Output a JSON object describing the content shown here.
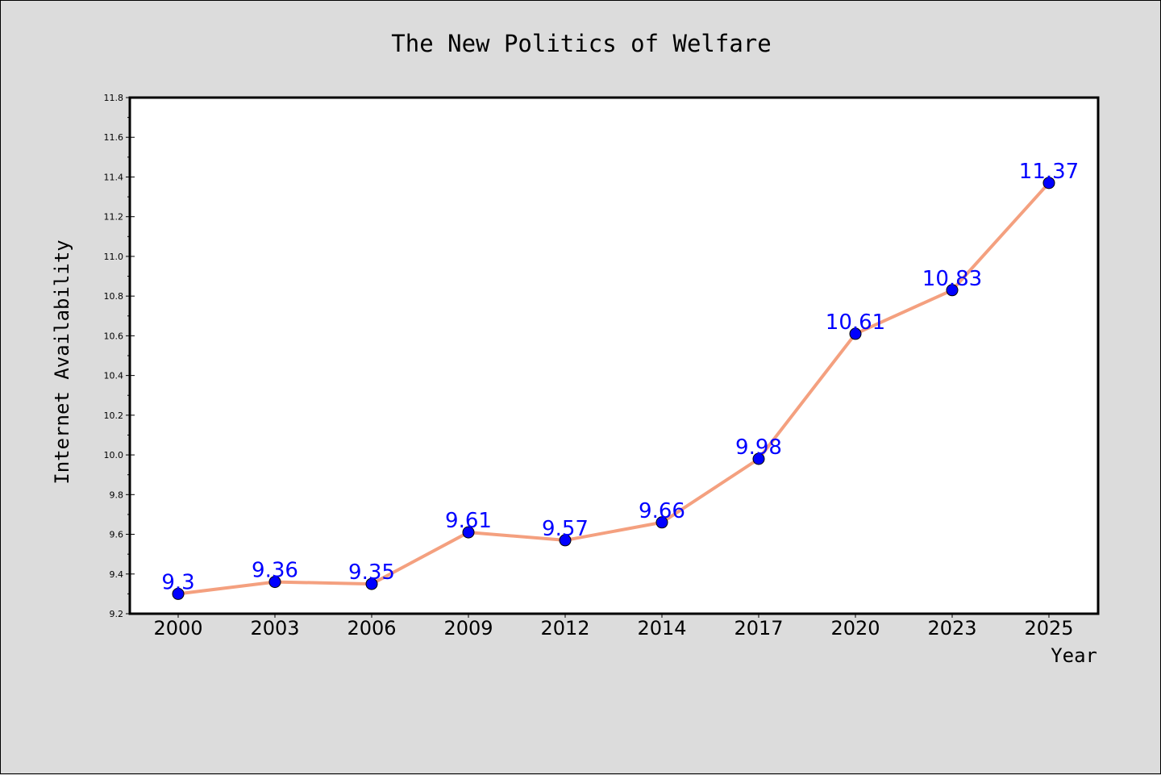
{
  "colors": {
    "background": "#dcdcdc",
    "plot_background": "#ffffff",
    "line": "#f4a07f",
    "marker": "#0000ff",
    "data_label": "#0000ff"
  },
  "chart_data": {
    "type": "line",
    "title": "The New Politics of Welfare",
    "xlabel": "Year",
    "ylabel": "Internet Availability",
    "categories": [
      "2000",
      "2003",
      "2006",
      "2009",
      "2012",
      "2014",
      "2017",
      "2020",
      "2023",
      "2025"
    ],
    "series": [
      {
        "values": [
          9.3,
          9.36,
          9.35,
          9.61,
          9.57,
          9.66,
          9.98,
          10.61,
          10.83,
          11.37
        ],
        "labels": [
          "9.3",
          "9.36",
          "9.35",
          "9.61",
          "9.57",
          "9.66",
          "9.98",
          "10.61",
          "10.83",
          "11.37"
        ]
      }
    ],
    "ylim": [
      9.2,
      11.8
    ],
    "yticks": [
      "9.2",
      "9.4",
      "9.6",
      "9.8",
      "10.0",
      "10.2",
      "10.4",
      "10.6",
      "10.8",
      "11.0",
      "11.2",
      "11.4",
      "11.6",
      "11.8"
    ],
    "grid": false,
    "legend": "none"
  }
}
